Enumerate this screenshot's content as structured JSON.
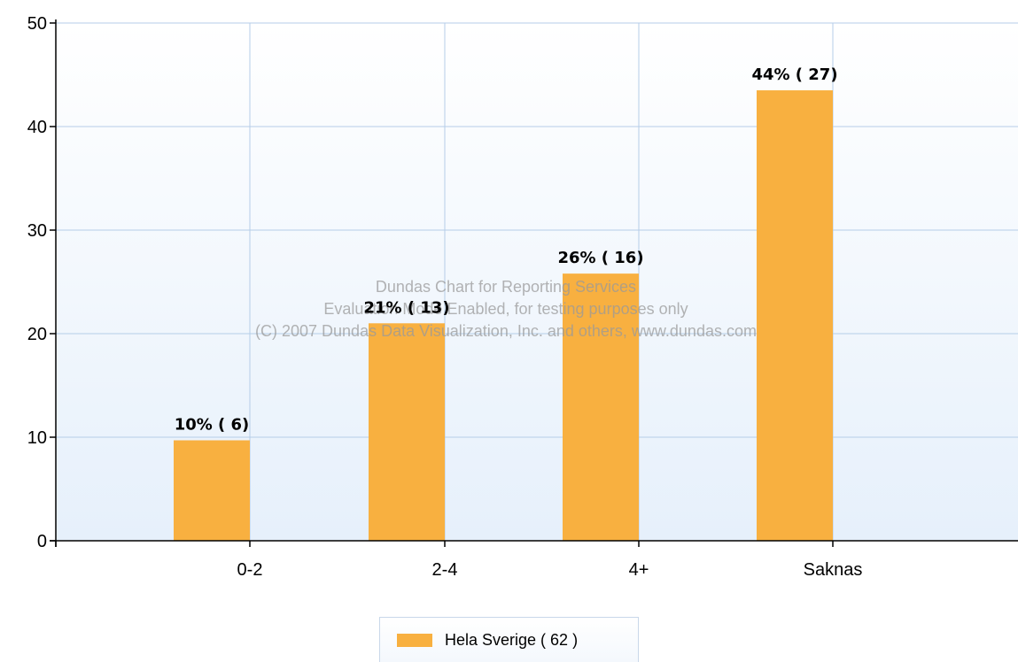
{
  "chart_data": {
    "type": "bar",
    "categories": [
      "0-2",
      "2-4",
      "4+",
      "Saknas"
    ],
    "series": [
      {
        "name": "Hela Sverige  ( 62 )",
        "values": [
          9.7,
          21,
          25.8,
          43.5
        ],
        "labels": [
          "10% ( 6)",
          "21% ( 13)",
          "26% ( 16)",
          "44% ( 27)"
        ]
      }
    ],
    "ylim": [
      0,
      50
    ],
    "yticks": [
      "0",
      "10",
      "20",
      "30",
      "40",
      "50"
    ],
    "grid": true,
    "legend_position": "bottom",
    "bar_color": "#f8b040",
    "grid_color": "#b5cde8",
    "watermark": [
      "Dundas Chart for Reporting Services",
      "Evaluation Mode Enabled, for testing purposes only",
      "(C) 2007 Dundas Data Visualization, Inc. and others, www.dundas.com"
    ]
  },
  "legend": {
    "label": "Hela Sverige  ( 62 )"
  }
}
